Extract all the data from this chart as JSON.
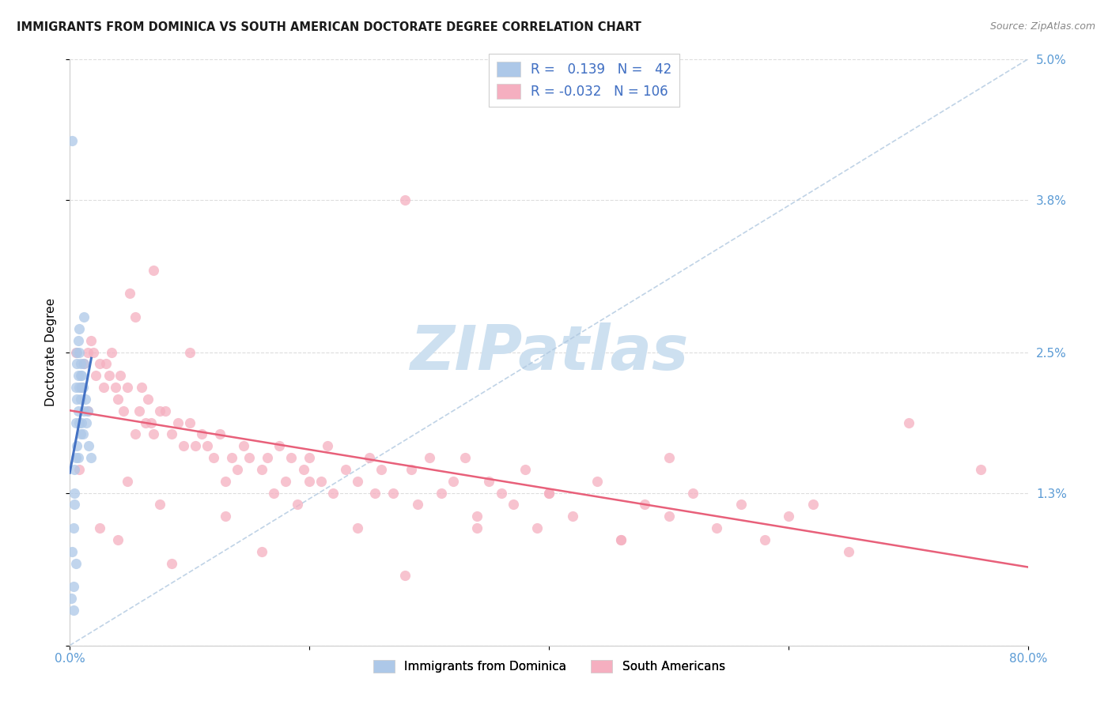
{
  "title": "IMMIGRANTS FROM DOMINICA VS SOUTH AMERICAN DOCTORATE DEGREE CORRELATION CHART",
  "source": "Source: ZipAtlas.com",
  "ylabel": "Doctorate Degree",
  "x_min": 0.0,
  "x_max": 0.8,
  "y_min": 0.0,
  "y_max": 0.05,
  "legend_label_blue": "Immigrants from Dominica",
  "legend_label_pink": "South Americans",
  "r_blue": 0.139,
  "n_blue": 42,
  "r_pink": -0.032,
  "n_pink": 106,
  "blue_fill": "#adc8e8",
  "pink_fill": "#f5afc0",
  "blue_line_color": "#4472c4",
  "pink_line_color": "#e8607a",
  "dash_line_color": "#b0c8e0",
  "watermark_color": "#cde0f0",
  "title_color": "#1a1a1a",
  "source_color": "#888888",
  "tick_color": "#5b9bd5",
  "axis_color": "#cccccc",
  "grid_color": "#dddddd",
  "legend_text_color": "#000000",
  "legend_rn_color": "#4472c4",
  "blue_x": [
    0.002,
    0.003,
    0.003,
    0.004,
    0.004,
    0.005,
    0.005,
    0.005,
    0.006,
    0.006,
    0.006,
    0.007,
    0.007,
    0.007,
    0.008,
    0.008,
    0.008,
    0.009,
    0.009,
    0.009,
    0.01,
    0.01,
    0.011,
    0.011,
    0.012,
    0.012,
    0.013,
    0.014,
    0.015,
    0.016,
    0.018,
    0.005,
    0.003,
    0.006,
    0.009,
    0.012,
    0.007,
    0.004,
    0.002,
    0.008,
    0.001,
    0.01
  ],
  "blue_y": [
    0.043,
    0.005,
    0.003,
    0.015,
    0.012,
    0.022,
    0.019,
    0.016,
    0.024,
    0.021,
    0.017,
    0.023,
    0.02,
    0.016,
    0.025,
    0.022,
    0.019,
    0.024,
    0.021,
    0.018,
    0.023,
    0.019,
    0.022,
    0.018,
    0.028,
    0.02,
    0.021,
    0.019,
    0.02,
    0.017,
    0.016,
    0.007,
    0.01,
    0.025,
    0.023,
    0.024,
    0.026,
    0.013,
    0.008,
    0.027,
    0.004,
    0.022
  ],
  "pink_x": [
    0.005,
    0.01,
    0.012,
    0.015,
    0.018,
    0.02,
    0.022,
    0.025,
    0.028,
    0.03,
    0.033,
    0.035,
    0.038,
    0.04,
    0.042,
    0.045,
    0.048,
    0.05,
    0.055,
    0.058,
    0.06,
    0.063,
    0.065,
    0.068,
    0.07,
    0.075,
    0.08,
    0.085,
    0.09,
    0.095,
    0.1,
    0.105,
    0.11,
    0.115,
    0.12,
    0.125,
    0.13,
    0.135,
    0.14,
    0.145,
    0.15,
    0.16,
    0.165,
    0.17,
    0.175,
    0.18,
    0.185,
    0.19,
    0.195,
    0.2,
    0.21,
    0.215,
    0.22,
    0.23,
    0.24,
    0.25,
    0.255,
    0.26,
    0.27,
    0.28,
    0.285,
    0.29,
    0.3,
    0.31,
    0.32,
    0.33,
    0.34,
    0.35,
    0.36,
    0.37,
    0.38,
    0.39,
    0.4,
    0.42,
    0.44,
    0.46,
    0.48,
    0.5,
    0.52,
    0.54,
    0.56,
    0.58,
    0.6,
    0.62,
    0.65,
    0.7,
    0.76,
    0.008,
    0.025,
    0.04,
    0.015,
    0.055,
    0.07,
    0.085,
    0.1,
    0.13,
    0.16,
    0.2,
    0.24,
    0.28,
    0.34,
    0.4,
    0.46,
    0.5,
    0.048,
    0.075
  ],
  "pink_y": [
    0.025,
    0.022,
    0.024,
    0.02,
    0.026,
    0.025,
    0.023,
    0.024,
    0.022,
    0.024,
    0.023,
    0.025,
    0.022,
    0.021,
    0.023,
    0.02,
    0.022,
    0.03,
    0.018,
    0.02,
    0.022,
    0.019,
    0.021,
    0.019,
    0.018,
    0.02,
    0.02,
    0.018,
    0.019,
    0.017,
    0.019,
    0.017,
    0.018,
    0.017,
    0.016,
    0.018,
    0.014,
    0.016,
    0.015,
    0.017,
    0.016,
    0.015,
    0.016,
    0.013,
    0.017,
    0.014,
    0.016,
    0.012,
    0.015,
    0.016,
    0.014,
    0.017,
    0.013,
    0.015,
    0.014,
    0.016,
    0.013,
    0.015,
    0.013,
    0.038,
    0.015,
    0.012,
    0.016,
    0.013,
    0.014,
    0.016,
    0.011,
    0.014,
    0.013,
    0.012,
    0.015,
    0.01,
    0.013,
    0.011,
    0.014,
    0.009,
    0.012,
    0.011,
    0.013,
    0.01,
    0.012,
    0.009,
    0.011,
    0.012,
    0.008,
    0.019,
    0.015,
    0.015,
    0.01,
    0.009,
    0.025,
    0.028,
    0.032,
    0.007,
    0.025,
    0.011,
    0.008,
    0.014,
    0.01,
    0.006,
    0.01,
    0.013,
    0.009,
    0.016,
    0.014,
    0.012
  ]
}
